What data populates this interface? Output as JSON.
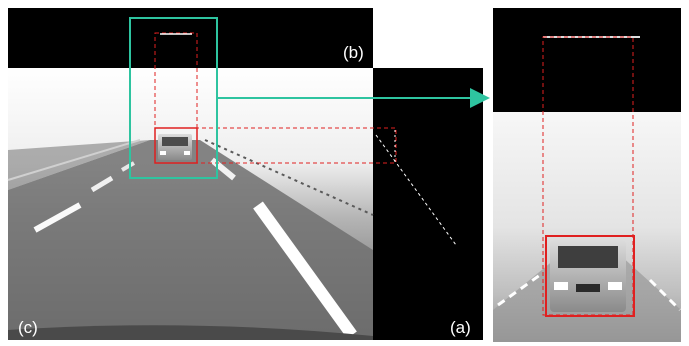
{
  "figure": {
    "labels": {
      "a": "(a)",
      "b": "(b)",
      "c": "(c)"
    },
    "colors": {
      "roi_box": "#2ec4a0",
      "projection": "#e02020",
      "background_dark": "#000000",
      "fog": "#f4f4f4",
      "road": "#6e6e6e",
      "label_light": "#ffffff",
      "label_dark": "#000000"
    },
    "icons": {
      "arrow": "right-arrow-icon",
      "car": "car-icon"
    }
  }
}
